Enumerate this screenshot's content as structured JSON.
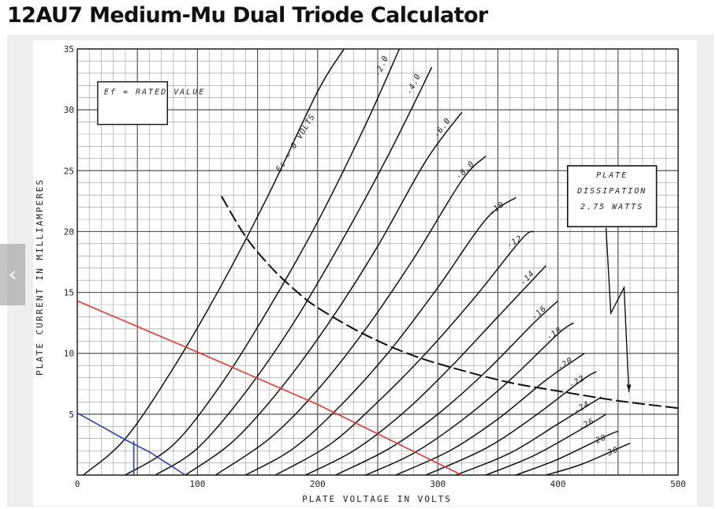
{
  "page": {
    "title": "12AU7 Medium-Mu Dual Triode Calculator"
  },
  "nav": {
    "prev_icon": "chevron-left-icon",
    "prev_glyph": "‹"
  },
  "chart_data": {
    "type": "line",
    "xlabel": "PLATE VOLTAGE IN VOLTS",
    "ylabel": "PLATE CURRENT IN MILLIAMPERES",
    "xlim": [
      0,
      500
    ],
    "ylim": [
      0,
      35
    ],
    "x_ticks": [
      "0",
      "100",
      "200",
      "300",
      "400",
      "500"
    ],
    "y_ticks": [
      "5",
      "10",
      "15",
      "20",
      "25",
      "30",
      "35"
    ],
    "grid": true,
    "annotations": {
      "heater": "Ef = RATED VALUE",
      "dissipation": [
        "PLATE",
        "DISSIPATION",
        "2.75 WATTS"
      ]
    },
    "series": [
      {
        "name": "Ec = 0 VOLTS",
        "x": [
          5,
          40,
          80,
          120,
          160,
          200,
          222
        ],
        "y": [
          0,
          3,
          8.8,
          15.6,
          23.2,
          31.5,
          35
        ]
      },
      {
        "name": "-2.0",
        "x": [
          40,
          80,
          120,
          160,
          200,
          240,
          268
        ],
        "y": [
          0,
          2.5,
          7.5,
          13.8,
          20.8,
          28.8,
          35
        ]
      },
      {
        "name": "-4.0",
        "x": [
          65,
          100,
          140,
          180,
          220,
          260,
          295
        ],
        "y": [
          0,
          2.2,
          6.8,
          12.5,
          19.2,
          26.5,
          33.5
        ]
      },
      {
        "name": "-6.0",
        "x": [
          90,
          130,
          170,
          210,
          250,
          290,
          320
        ],
        "y": [
          0,
          2.8,
          7.2,
          12.6,
          18.8,
          25.8,
          29.8
        ]
      },
      {
        "name": "-8.0",
        "x": [
          115,
          160,
          200,
          240,
          280,
          320,
          340
        ],
        "y": [
          0,
          3,
          7,
          12,
          17.8,
          24.2,
          26.2
        ]
      },
      {
        "name": "-10",
        "x": [
          140,
          180,
          220,
          260,
          300,
          340,
          365
        ],
        "y": [
          0,
          2.2,
          5.8,
          10.2,
          15.4,
          21,
          22.8
        ]
      },
      {
        "name": "-12",
        "x": [
          165,
          210,
          250,
          290,
          330,
          370,
          380
        ],
        "y": [
          0,
          2.5,
          6,
          10,
          14.5,
          19.4,
          20
        ]
      },
      {
        "name": "-14",
        "x": [
          190,
          230,
          270,
          310,
          350,
          390
        ],
        "y": [
          0,
          2,
          5,
          8.8,
          13,
          17.2
        ]
      },
      {
        "name": "-16",
        "x": [
          215,
          260,
          300,
          340,
          380,
          400
        ],
        "y": [
          0,
          2.2,
          5,
          8.5,
          12.5,
          14.3
        ]
      },
      {
        "name": "-18",
        "x": [
          240,
          280,
          320,
          360,
          400,
          413
        ],
        "y": [
          0,
          1.8,
          4.5,
          7.8,
          11.6,
          12.5
        ]
      },
      {
        "name": "-20",
        "x": [
          265,
          310,
          350,
          390,
          422
        ],
        "y": [
          0,
          2,
          4.6,
          7.8,
          10
        ]
      },
      {
        "name": "-22",
        "x": [
          290,
          340,
          380,
          420,
          432
        ],
        "y": [
          0,
          2.2,
          4.8,
          7.8,
          8.5
        ]
      },
      {
        "name": "-24",
        "x": [
          315,
          360,
          400,
          436
        ],
        "y": [
          0,
          1.8,
          4.2,
          6.4
        ]
      },
      {
        "name": "-26",
        "x": [
          340,
          380,
          420,
          440
        ],
        "y": [
          0,
          1.6,
          3.8,
          5
        ]
      },
      {
        "name": "-28",
        "x": [
          365,
          400,
          440,
          450
        ],
        "y": [
          0,
          1.3,
          3.2,
          3.6
        ]
      },
      {
        "name": "-30",
        "x": [
          390,
          420,
          455,
          460
        ],
        "y": [
          0,
          0.9,
          2.4,
          2.6
        ]
      },
      {
        "name": "PLATE DISSIPATION 2.75 WATTS",
        "x": [
          120,
          140,
          160,
          180,
          200,
          240,
          280,
          320,
          360,
          400,
          450,
          500
        ],
        "y": [
          22.9,
          19.6,
          17.2,
          15.3,
          13.75,
          11.5,
          9.8,
          8.6,
          7.6,
          6.9,
          6.1,
          5.5
        ]
      },
      {
        "name": "load line",
        "x": [
          0,
          100,
          200,
          320
        ],
        "y": [
          14.3,
          10.1,
          5.8,
          0
        ]
      },
      {
        "name": "load line small",
        "x": [
          0,
          40,
          60,
          90
        ],
        "y": [
          5.1,
          2.9,
          1.9,
          0
        ]
      },
      {
        "name": "operating point",
        "x": [
          47,
          47
        ],
        "y": [
          2.8,
          0
        ]
      }
    ],
    "colors": {
      "curves": "#111111",
      "grid": "#9a9a9a",
      "red_line": "#e8382f",
      "blue_line": "#2b3fb8"
    }
  }
}
